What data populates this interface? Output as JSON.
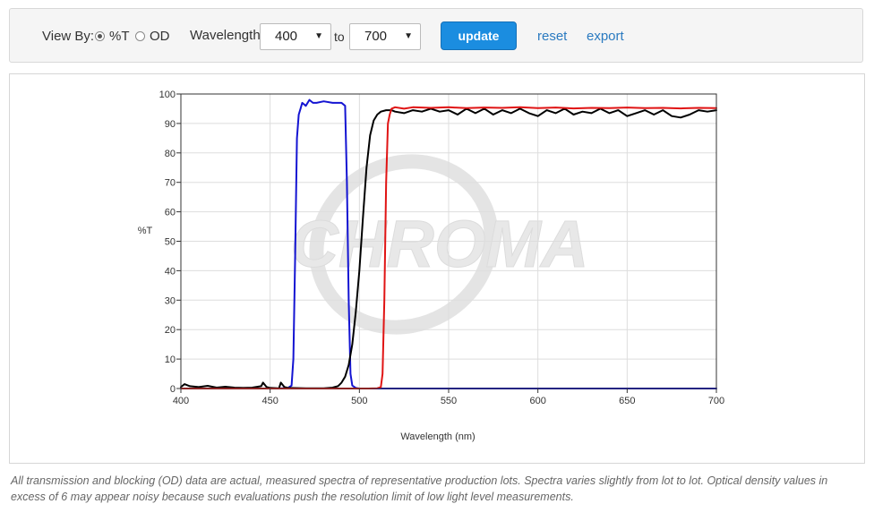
{
  "toolbar": {
    "view_by_label": "View By:",
    "option_t": "%T",
    "option_od": "OD",
    "selected": "%T",
    "wavelength_label": "Wavelength",
    "from_value": "400",
    "to_label": "to",
    "to_value": "700",
    "update_label": "update",
    "reset_label": "reset",
    "export_label": "export",
    "accent_color": "#1b8de0",
    "link_color": "#2a7ac0"
  },
  "chart_data": {
    "type": "line",
    "title": "",
    "xlabel": "Wavelength (nm)",
    "ylabel": "%T",
    "xlim": [
      400,
      700
    ],
    "ylim": [
      0,
      100
    ],
    "x_ticks": [
      400,
      450,
      500,
      550,
      600,
      650,
      700
    ],
    "y_ticks": [
      0,
      10,
      20,
      30,
      40,
      50,
      60,
      70,
      80,
      90,
      100
    ],
    "grid": true,
    "legend": "none",
    "watermark": "CHROMA",
    "series": [
      {
        "color": "#1414d2",
        "x": [
          400,
          455,
          460,
          462,
          463,
          464,
          465,
          466,
          467,
          468,
          470,
          472,
          474,
          476,
          480,
          485,
          490,
          492,
          493,
          494,
          495,
          496,
          498,
          500,
          700
        ],
        "y": [
          0,
          0,
          0.2,
          1,
          10,
          45,
          85,
          93,
          95,
          97,
          96,
          98,
          97,
          97,
          97.5,
          97,
          97,
          96,
          70,
          30,
          5,
          1,
          0.2,
          0,
          0
        ]
      },
      {
        "color": "#000000",
        "x": [
          400,
          402,
          405,
          410,
          415,
          420,
          425,
          430,
          435,
          440,
          445,
          446,
          448,
          450,
          455,
          456,
          458,
          460,
          470,
          480,
          485,
          488,
          490,
          492,
          494,
          496,
          498,
          500,
          502,
          504,
          506,
          508,
          510,
          512,
          515,
          518,
          520,
          525,
          530,
          535,
          540,
          545,
          550,
          555,
          560,
          565,
          570,
          575,
          580,
          585,
          590,
          595,
          600,
          605,
          610,
          615,
          620,
          625,
          630,
          635,
          640,
          645,
          650,
          655,
          660,
          665,
          670,
          675,
          680,
          685,
          690,
          695,
          700
        ],
        "y": [
          0.5,
          1.5,
          0.8,
          0.5,
          0.9,
          0.3,
          0.6,
          0.3,
          0.2,
          0.3,
          0.8,
          2,
          0.5,
          0.2,
          0.1,
          2,
          0.5,
          0.2,
          0.1,
          0.1,
          0.3,
          0.8,
          2,
          4,
          8,
          15,
          26,
          40,
          58,
          75,
          86,
          91,
          93,
          94,
          94.5,
          94.5,
          94,
          93.5,
          94.5,
          94,
          95,
          94,
          94.5,
          93,
          95,
          93.5,
          95,
          93,
          94.5,
          93.5,
          95,
          93.5,
          92.5,
          94.5,
          93.5,
          95,
          93,
          94,
          93.5,
          95,
          93.5,
          94.5,
          92.5,
          93.5,
          94.5,
          93,
          94.5,
          92.5,
          92,
          93,
          94.5,
          94,
          94.5
        ]
      },
      {
        "color": "#e01414",
        "x": [
          400,
          505,
          510,
          512,
          513,
          514,
          515,
          516,
          517,
          518,
          520,
          525,
          530,
          540,
          550,
          560,
          570,
          580,
          590,
          600,
          610,
          620,
          630,
          640,
          650,
          660,
          670,
          680,
          690,
          700
        ],
        "y": [
          0,
          0,
          0.1,
          0.5,
          5,
          30,
          70,
          90,
          93,
          95,
          95.5,
          95,
          95.5,
          95.3,
          95.5,
          95.2,
          95.4,
          95.3,
          95.5,
          95.2,
          95.4,
          95.1,
          95.3,
          95.2,
          95.4,
          95.2,
          95.3,
          95.1,
          95.3,
          95.2
        ]
      }
    ]
  },
  "footnote": "All transmission and blocking (OD) data are actual, measured spectra of representative production lots. Spectra varies slightly from lot to lot. Optical density values in excess of 6 may appear noisy because such evaluations push the resolution limit of low light level measurements."
}
